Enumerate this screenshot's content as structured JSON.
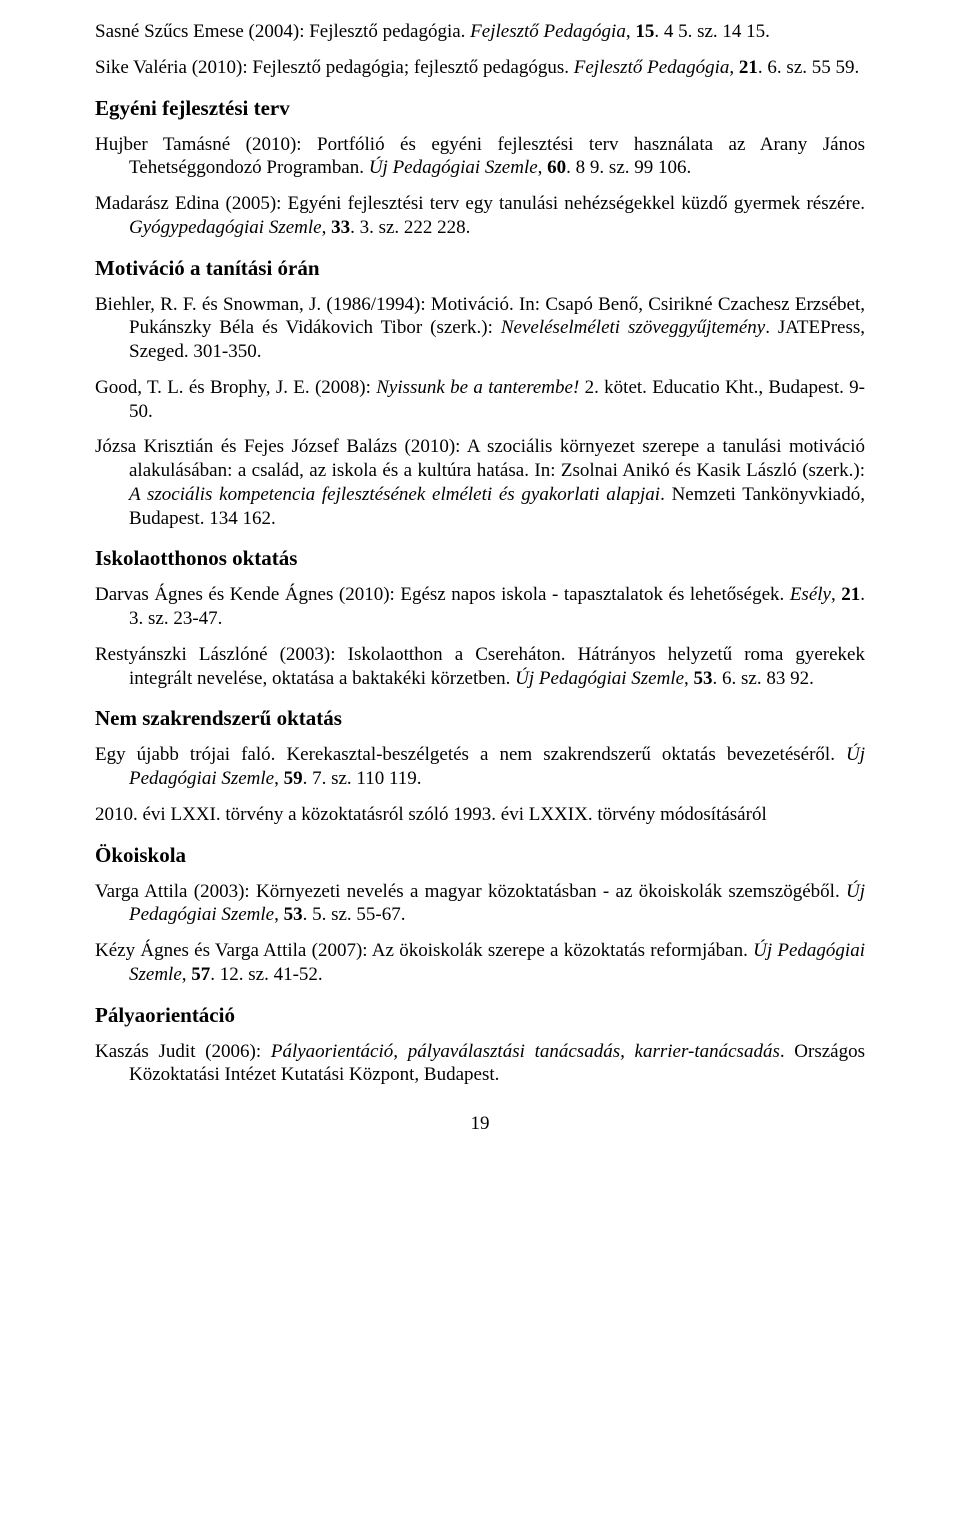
{
  "refs": {
    "r1a": "Sasné Szűcs Emese (2004): Fejlesztő pedagógia. ",
    "r1b": "Fejlesztő Pedagógia",
    "r1c": ", ",
    "r1d": "15",
    "r1e": ". 4 5. sz. 14 15.",
    "r2a": "Sike Valéria (2010): Fejlesztő pedagógia; fejlesztő pedagógus. ",
    "r2b": "Fejlesztő Pedagógia",
    "r2c": ", ",
    "r2d": "21",
    "r2e": ". 6. sz. 55 59.",
    "h1": "Egyéni fejlesztési terv",
    "r3a": "Hujber Tamásné (2010): Portfólió és egyéni fejlesztési terv használata az Arany János Tehetséggondozó Programban. ",
    "r3b": "Új Pedagógiai Szemle",
    "r3c": ", ",
    "r3d": "60",
    "r3e": ". 8 9. sz. 99 106.",
    "r4a": "Madarász Edina (2005): Egyéni fejlesztési terv egy tanulási nehézségekkel küzdő gyermek részére. ",
    "r4b": "Gyógypedagógiai Szemle",
    "r4c": ", ",
    "r4d": "33",
    "r4e": ". 3. sz. 222 228.",
    "h2": "Motiváció a tanítási órán",
    "r5a": "Biehler, R. F. és Snowman, J. (1986/1994): Motiváció. In: Csapó Benő, Csirikné Czachesz Erzsébet, Pukánszky Béla és Vidákovich Tibor (szerk.): ",
    "r5b": "Neveléselméleti szöveggyűjtemény",
    "r5c": ". JATEPress, Szeged. 301-350.",
    "r6a": "Good, T. L. és Brophy, J. E. (2008): ",
    "r6b": "Nyissunk be a tanterembe!",
    "r6c": " 2. kötet. Educatio Kht., Budapest. 9-50.",
    "r7a": "Józsa Krisztián és Fejes József Balázs (2010): A szociális környezet szerepe a tanulási motiváció alakulásában: a család, az iskola és a kultúra hatása. In: Zsolnai Anikó és Kasik László (szerk.): ",
    "r7b": "A szociális kompetencia fejlesztésének elméleti és gyakorlati alapjai",
    "r7c": ". Nemzeti Tankönyvkiadó, Budapest. 134 162.",
    "h3": "Iskolaotthonos oktatás",
    "r8a": "Darvas Ágnes és Kende Ágnes (2010): Egész napos iskola - tapasztalatok és lehetőségek. ",
    "r8b": "Esély",
    "r8c": ", ",
    "r8d": "21",
    "r8e": ". 3. sz. 23-47.",
    "r9a": "Restyánszki Lászlóné (2003): Iskolaotthon a Csereháton. Hátrányos helyzetű roma gyerekek integrált nevelése, oktatása a baktakéki körzetben. ",
    "r9b": "Új Pedagógiai Szemle",
    "r9c": ", ",
    "r9d": "53",
    "r9e": ". 6. sz. 83 92.",
    "h4": "Nem szakrendszerű oktatás",
    "r10a": "Egy újabb trójai faló. Kerekasztal-beszélgetés a nem szakrendszerű oktatás bevezetéséről. ",
    "r10b": "Új Pedagógiai Szemle",
    "r10c": ", ",
    "r10d": "59",
    "r10e": ". 7. sz. 110 119.",
    "r11": "2010. évi LXXI. törvény a közoktatásról szóló 1993. évi LXXIX. törvény módosításáról",
    "h5": "Ökoiskola",
    "r12a": "Varga Attila (2003): Környezeti nevelés a magyar közoktatásban - az ökoiskolák szemszögéből. ",
    "r12b": "Új Pedagógiai Szemle",
    "r12c": ", ",
    "r12d": "53",
    "r12e": ".  5. sz. 55-67.",
    "r13a": "Kézy Ágnes és Varga Attila (2007): Az ökoiskolák szerepe a közoktatás reformjában. ",
    "r13b": "Új Pedagógiai Szemle",
    "r13c": ", ",
    "r13d": "57",
    "r13e": ".  12. sz. 41-52.",
    "h6": "Pályaorientáció",
    "r14a": "Kaszás Judit (2006): ",
    "r14b": "Pályaorientáció, pályaválasztási tanácsadás, karrier-tanácsadás",
    "r14c": ". Országos Közoktatási Intézet Kutatási Központ, Budapest.",
    "pagenum": "19"
  }
}
